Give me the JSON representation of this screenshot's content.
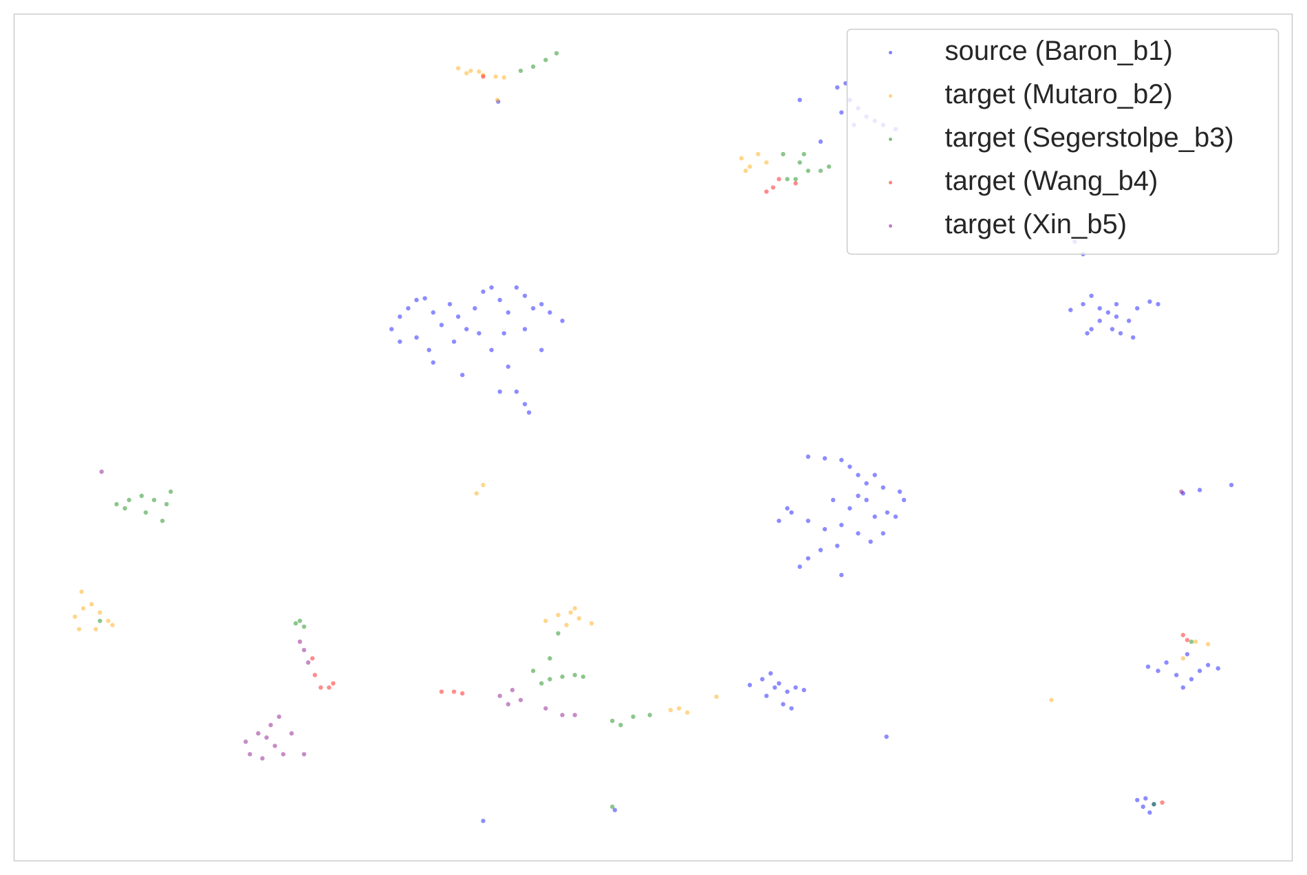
{
  "chart_data": {
    "type": "scatter",
    "xlim": [
      0,
      1534
    ],
    "ylim": [
      0,
      1016
    ],
    "grid": false,
    "legend": "upper right",
    "series": [
      {
        "name": "source (Baron_b1)",
        "color": "#0000ff",
        "x": [
          453,
          463,
          473,
          483,
          493,
          503,
          513,
          523,
          533,
          543,
          553,
          563,
          573,
          583,
          593,
          603,
          613,
          623,
          633,
          643,
          658,
          463,
          483,
          498,
          528,
          558,
          588,
          613,
          633,
          573,
          593,
          603,
          613,
          618,
          583,
          538,
          503,
          988,
          998,
          1003,
          1013,
          1023,
          1033,
          1043,
          1058,
          993,
          1008,
          943,
          968,
          1268,
          1283,
          1293,
          1303,
          1313,
          1323,
          1318,
          1328,
          1338,
          1348,
          1363,
          1373,
          1293,
          1303,
          1323,
          1288,
          1343,
          1273,
          1283,
          953,
          973,
          993,
          1003,
          1013,
          1023,
          1043,
          1063,
          1068,
          1058,
          1043,
          1028,
          1013,
          993,
          973,
          953,
          933,
          918,
          928,
          983,
          1003,
          1023,
          1033,
          988,
          968,
          953,
          943,
          993,
          1033,
          1013,
          1048,
          883,
          898,
          908,
          918,
          928,
          938,
          948,
          923,
          903,
          933,
          913,
          1361,
          1373,
          1383,
          1395,
          1403,
          1413,
          1423,
          1433,
          1445,
          1408,
          1348,
          1355,
          1363,
          1358,
          1368,
          581,
          563,
          1047,
          1403,
          1423,
          1461,
          721
        ],
        "values": [
          638,
          653,
          663,
          673,
          675,
          658,
          643,
          668,
          653,
          638,
          663,
          683,
          688,
          673,
          658,
          688,
          678,
          663,
          668,
          658,
          648,
          623,
          628,
          613,
          623,
          633,
          633,
          638,
          613,
          613,
          593,
          563,
          548,
          538,
          563,
          583,
          598,
          928,
          933,
          913,
          903,
          893,
          888,
          883,
          878,
          898,
          883,
          913,
          863,
          661,
          668,
          678,
          663,
          658,
          653,
          638,
          633,
          648,
          663,
          671,
          668,
          638,
          648,
          668,
          633,
          628,
          743,
          728,
          485,
          483,
          481,
          473,
          463,
          453,
          448,
          443,
          433,
          413,
          393,
          383,
          393,
          403,
          398,
          408,
          418,
          408,
          423,
          433,
          423,
          433,
          413,
          378,
          373,
          363,
          353,
          343,
          463,
          438,
          418,
          211,
          218,
          225,
          213,
          203,
          208,
          205,
          188,
          198,
          183,
          208,
          233,
          228,
          238,
          223,
          208,
          218,
          228,
          235,
          231,
          248,
          73,
          65,
          58,
          75,
          68,
          911,
          48,
          149,
          441,
          445,
          451,
          61
        ]
      },
      {
        "name": "target (Mutaro_b2)",
        "color": "#ffa500",
        "x": [
          533,
          548,
          563,
          578,
          588,
          543,
          558,
          580,
          873,
          883,
          893,
          903,
          878,
          555,
          563,
          73,
          83,
          93,
          103,
          113,
          78,
          98,
          118,
          81,
          638,
          653,
          668,
          678,
          693,
          663,
          673,
          788,
          798,
          808,
          843,
          1418,
          1433,
          1245,
          1403
        ],
        "values": [
          951,
          948,
          943,
          941,
          940,
          945,
          947,
          913,
          843,
          833,
          848,
          838,
          828,
          441,
          451,
          293,
          303,
          308,
          298,
          288,
          278,
          278,
          283,
          323,
          288,
          295,
          298,
          291,
          285,
          283,
          303,
          181,
          183,
          178,
          197,
          263,
          260,
          193,
          243
        ]
      },
      {
        "name": "target (Segerstolpe_b3)",
        "color": "#008000",
        "x": [
          608,
          623,
          638,
          651,
          928,
          943,
          953,
          968,
          978,
          938,
          923,
          948,
          123,
          138,
          153,
          168,
          183,
          158,
          178,
          133,
          188,
          338,
          348,
          343,
          643,
          658,
          673,
          683,
          633,
          653,
          643,
          623,
          728,
          718,
          743,
          763,
          718,
          1413,
          1368,
          103
        ],
        "values": [
          948,
          953,
          961,
          969,
          818,
          838,
          828,
          828,
          833,
          818,
          848,
          848,
          428,
          433,
          438,
          433,
          428,
          418,
          408,
          423,
          443,
          285,
          281,
          288,
          218,
          221,
          223,
          221,
          213,
          273,
          243,
          228,
          163,
          168,
          173,
          175,
          65,
          263,
          68,
          288
        ]
      },
      {
        "name": "target (Wang_b4)",
        "color": "#ff0000",
        "x": [
          563,
          903,
          911,
          918,
          938,
          368,
          378,
          383,
          361,
          358,
          513,
          528,
          538,
          1403,
          1408,
          1378
        ],
        "values": [
          941,
          803,
          808,
          818,
          813,
          208,
          208,
          213,
          223,
          243,
          203,
          203,
          201,
          271,
          265,
          70
        ]
      },
      {
        "name": "target (Xin_b5)",
        "color": "#800080",
        "x": [
          278,
          293,
          303,
          313,
          283,
          298,
          323,
          308,
          318,
          348,
          333,
          348,
          353,
          343,
          583,
          598,
          608,
          593,
          638,
          658,
          673,
          105,
          1401
        ],
        "values": [
          143,
          153,
          148,
          138,
          128,
          123,
          128,
          163,
          173,
          128,
          153,
          253,
          238,
          263,
          198,
          205,
          193,
          188,
          183,
          175,
          175,
          467,
          443
        ]
      }
    ]
  }
}
